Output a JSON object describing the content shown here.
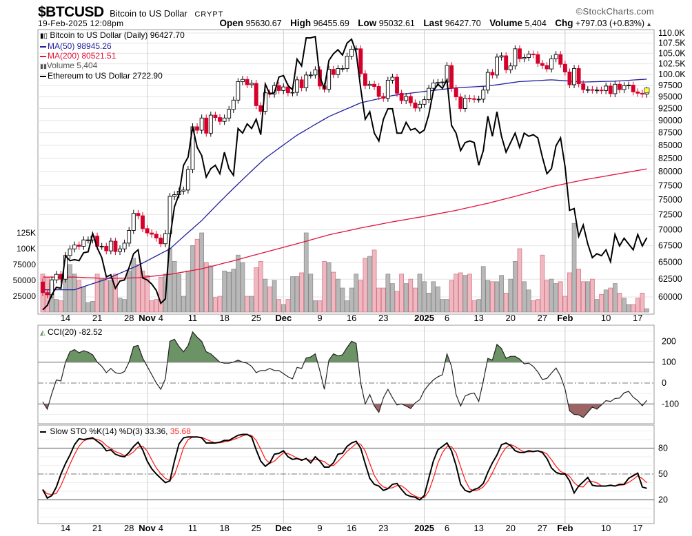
{
  "header": {
    "symbol": "$BTCUSD",
    "name": "Bitcoin to US Dollar",
    "exchange": "CRYPT",
    "datetime": "19-Feb-2025 12:08pm",
    "copyright": "©StockCharts.com",
    "open_label": "Open",
    "open": "95630.67",
    "high_label": "High",
    "high": "96455.69",
    "low_label": "Low",
    "low": "95032.61",
    "last_label": "Last",
    "last": "96427.70",
    "volume_label": "Volume",
    "volume": "5,404",
    "chg_label": "Chg",
    "chg": "+797.03 (+0.83%)",
    "chg_arrow": "▲"
  },
  "legend": {
    "price": "Bitcoin to US Dollar (Daily) 96427.70",
    "ma50": "MA(50) 98945.26",
    "ma200": "MA(200) 80521.51",
    "volume": "Volume 5,404",
    "eth": "Ethereum to US Dollar 2722.90",
    "cci": "CCI(20) -82.52",
    "sto": "Slow STO %K(14) %D(3) 33.36,",
    "sto_d": "35.68"
  },
  "colors": {
    "up_candle": "#000000",
    "down_candle": "#d6002b",
    "ma50": "#1f1f9e",
    "ma200": "#e0143c",
    "eth": "#000000",
    "volume_up": "#b8b8b8",
    "volume_down": "#f0b9c2",
    "cci_fill_high": "#6b9366",
    "cci_fill_low": "#9c6464",
    "sto_k": "#000000",
    "sto_d": "#ff2020"
  },
  "chart_data": [
    {
      "type": "candlestick",
      "title": "$BTCUSD Bitcoin to US Dollar",
      "xlim": [
        "2024-10-09",
        "2025-02-19"
      ],
      "price_scale": "log",
      "ylim": [
        58500,
        111000
      ],
      "price_ticks": [
        "110.0K",
        "107.5K",
        "105.0K",
        "102.5K",
        "100.0K",
        "97500",
        "95000",
        "92500",
        "90000",
        "87500",
        "85000",
        "82500",
        "80000",
        "77500",
        "75000",
        "72500",
        "70000",
        "67500",
        "65000",
        "62500",
        "60000"
      ],
      "price_tick_values": [
        110000,
        107500,
        105000,
        102500,
        100000,
        97500,
        95000,
        92500,
        90000,
        87500,
        85000,
        82500,
        80000,
        77500,
        75000,
        72500,
        70000,
        67500,
        65000,
        62500,
        60000
      ],
      "volume_ticks": [
        "125K",
        "100K",
        "75000",
        "50000",
        "25000"
      ],
      "volume_tick_values": [
        125000,
        100000,
        75000,
        50000,
        25000
      ],
      "x_ticks": [
        {
          "label": "14",
          "date": "2024-10-14",
          "bold": false
        },
        {
          "label": "21",
          "date": "2024-10-21",
          "bold": false
        },
        {
          "label": "28",
          "date": "2024-10-28",
          "bold": false
        },
        {
          "label": "Nov",
          "date": "2024-11-01",
          "bold": true
        },
        {
          "label": "4",
          "date": "2024-11-04",
          "bold": false
        },
        {
          "label": "11",
          "date": "2024-11-11",
          "bold": false
        },
        {
          "label": "18",
          "date": "2024-11-18",
          "bold": false
        },
        {
          "label": "25",
          "date": "2024-11-25",
          "bold": false
        },
        {
          "label": "Dec",
          "date": "2024-12-01",
          "bold": true
        },
        {
          "label": "9",
          "date": "2024-12-09",
          "bold": false
        },
        {
          "label": "16",
          "date": "2024-12-16",
          "bold": false
        },
        {
          "label": "23",
          "date": "2024-12-23",
          "bold": false
        },
        {
          "label": "2025",
          "date": "2025-01-01",
          "bold": true
        },
        {
          "label": "6",
          "date": "2025-01-06",
          "bold": false
        },
        {
          "label": "13",
          "date": "2025-01-13",
          "bold": false
        },
        {
          "label": "20",
          "date": "2025-01-20",
          "bold": false
        },
        {
          "label": "27",
          "date": "2025-01-27",
          "bold": false
        },
        {
          "label": "Feb",
          "date": "2025-02-01",
          "bold": true
        },
        {
          "label": "10",
          "date": "2025-02-10",
          "bold": false
        },
        {
          "label": "17",
          "date": "2025-02-17",
          "bold": false
        }
      ],
      "btc_first_open": 62100,
      "btc_close": [
        60600,
        60300,
        62400,
        63200,
        62500,
        66000,
        67000,
        67600,
        67400,
        68400,
        68400,
        69000,
        67400,
        67400,
        66700,
        68200,
        66600,
        67000,
        67900,
        69900,
        72700,
        72300,
        70200,
        69500,
        69300,
        68700,
        67800,
        69400,
        75600,
        75900,
        76500,
        76700,
        80400,
        88700,
        88000,
        90500,
        87400,
        91100,
        90600,
        89800,
        90500,
        92300,
        94300,
        98400,
        98900,
        97700,
        98000,
        93100,
        91900,
        95900,
        95600,
        97500,
        96400,
        97200,
        95900,
        96000,
        98800,
        97000,
        99900,
        99900,
        101100,
        97400,
        96700,
        101200,
        100000,
        101400,
        101400,
        104300,
        106000,
        106100,
        100200,
        97500,
        97800,
        97300,
        95100,
        94700,
        98700,
        99400,
        95800,
        94200,
        95100,
        93700,
        92600,
        93400,
        94400,
        96900,
        98100,
        98200,
        98300,
        102100,
        96900,
        95000,
        92500,
        94700,
        94600,
        94500,
        94500,
        96500,
        100500,
        99900,
        104100,
        104400,
        101100,
        102000,
        106100,
        103700,
        104000,
        104800,
        104700,
        102600,
        102100,
        101300,
        103700,
        104700,
        102400,
        100600,
        97700,
        101400,
        97900,
        96600,
        96600,
        96500,
        96500,
        96400,
        97400,
        95700,
        97800,
        96600,
        97500,
        97600,
        96100,
        95800,
        95600,
        96427.7
      ],
      "volume": [
        60000,
        55000,
        45000,
        20000,
        18000,
        70000,
        75000,
        60000,
        50000,
        40000,
        15000,
        17000,
        60000,
        52000,
        50000,
        50000,
        60000,
        22000,
        20000,
        65000,
        85000,
        75000,
        65000,
        58000,
        18000,
        20000,
        55000,
        60000,
        100000,
        80000,
        60000,
        25000,
        65000,
        105000,
        115000,
        125000,
        78000,
        73000,
        23000,
        25000,
        65000,
        63000,
        68000,
        90000,
        78000,
        25000,
        25000,
        70000,
        80000,
        52000,
        40000,
        50000,
        20000,
        12000,
        20000,
        56000,
        56000,
        62000,
        125000,
        60000,
        18000,
        18000,
        80000,
        78000,
        63000,
        52000,
        38000,
        18000,
        38000,
        60000,
        50000,
        85000,
        88000,
        98000,
        38000,
        38000,
        60000,
        45000,
        33000,
        60000,
        45000,
        52000,
        38000,
        60000,
        48000,
        30000,
        48000,
        40000,
        20000,
        20000,
        50000,
        60000,
        62000,
        58000,
        60000,
        18000,
        20000,
        72000,
        50000,
        48000,
        48000,
        58000,
        30000,
        52000,
        80000,
        100000,
        48000,
        35000,
        18000,
        20000,
        90000,
        50000,
        52000,
        45000,
        48000,
        25000,
        62000,
        140000,
        68000,
        48000,
        48000,
        52000,
        20000,
        28000,
        35000,
        38000,
        45000,
        30000,
        22000,
        12000,
        12000,
        22000,
        30000,
        5404
      ],
      "eth_close": [
        2370,
        2390,
        2440,
        2475,
        2470,
        2630,
        2605,
        2610,
        2605,
        2645,
        2650,
        2745,
        2670,
        2620,
        2525,
        2535,
        2470,
        2505,
        2510,
        2570,
        2640,
        2660,
        2520,
        2510,
        2490,
        2460,
        2400,
        2420,
        2720,
        2890,
        2960,
        3130,
        3180,
        3370,
        3240,
        3190,
        3060,
        3110,
        3130,
        3080,
        3210,
        3110,
        3070,
        3360,
        3330,
        3390,
        3360,
        3420,
        3320,
        3660,
        3590,
        3600,
        3710,
        3720,
        3650,
        3620,
        3840,
        3790,
        4000,
        4000,
        4010,
        3710,
        3630,
        3830,
        3880,
        3910,
        3870,
        3960,
        3990,
        3890,
        3630,
        3420,
        3470,
        3330,
        3280,
        3420,
        3490,
        3490,
        3330,
        3330,
        3400,
        3350,
        3360,
        3330,
        3350,
        3450,
        3610,
        3660,
        3630,
        3690,
        3380,
        3330,
        3220,
        3270,
        3280,
        3270,
        3130,
        3220,
        3440,
        3310,
        3470,
        3310,
        3210,
        3270,
        3330,
        3240,
        3330,
        3310,
        3320,
        3300,
        3180,
        3080,
        3110,
        3250,
        3300,
        3120,
        2870,
        2880,
        2730,
        2790,
        2690,
        2620,
        2640,
        2630,
        2660,
        2600,
        2740,
        2680,
        2720,
        2690,
        2660,
        2740,
        2680,
        2722.9
      ],
      "ma50_weekly": [
        61000,
        61000,
        62500,
        64500,
        67000,
        71500,
        77000,
        82500,
        87000,
        90800,
        93700,
        95300,
        96200,
        97000,
        97400,
        98400,
        98800,
        98300,
        98500,
        98945.26
      ],
      "ma200_weekly": [
        62800,
        62800,
        62600,
        62700,
        63200,
        64000,
        65200,
        66500,
        67800,
        69200,
        70300,
        71300,
        72200,
        73200,
        74400,
        75800,
        77300,
        78500,
        79500,
        80521.51
      ],
      "series_names": [
        "Bitcoin to US Dollar (Daily)",
        "MA(50)",
        "MA(200)",
        "Volume",
        "Ethereum to US Dollar"
      ]
    },
    {
      "type": "line",
      "title": "CCI(20)",
      "ylim": [
        -220,
        270
      ],
      "y_ticks": [
        "200",
        "100",
        "0",
        "-100"
      ],
      "y_tick_values": [
        200,
        100,
        0,
        -100
      ],
      "values": [
        -90,
        -125,
        -50,
        15,
        10,
        100,
        150,
        160,
        145,
        155,
        148,
        135,
        100,
        80,
        50,
        70,
        50,
        45,
        55,
        100,
        175,
        180,
        120,
        80,
        40,
        0,
        -30,
        20,
        200,
        210,
        175,
        150,
        180,
        245,
        220,
        200,
        150,
        140,
        120,
        100,
        95,
        95,
        100,
        110,
        100,
        95,
        80,
        50,
        60,
        60,
        70,
        60,
        60,
        45,
        30,
        20,
        75,
        70,
        120,
        125,
        140,
        60,
        -30,
        110,
        140,
        130,
        135,
        170,
        200,
        190,
        0,
        -100,
        -55,
        -110,
        -140,
        -70,
        -30,
        -70,
        -105,
        -100,
        -110,
        -122,
        -95,
        -80,
        -35,
        -8,
        15,
        30,
        40,
        140,
        80,
        -55,
        -110,
        -62,
        -52,
        -48,
        -88,
        10,
        118,
        110,
        185,
        165,
        118,
        128,
        128,
        115,
        92,
        95,
        80,
        53,
        17,
        22,
        48,
        72,
        33,
        -30,
        -133,
        -150,
        -152,
        -165,
        -140,
        -115,
        -125,
        -105,
        -84,
        -88,
        -74,
        -72,
        -47,
        -40,
        -68,
        -84,
        -109,
        -82.52
      ]
    },
    {
      "type": "line",
      "title": "Slow STO %K(14) %D(3)",
      "ylim": [
        0,
        100
      ],
      "y_ticks": [
        "80",
        "50",
        "20"
      ],
      "y_tick_values": [
        80,
        50,
        20
      ],
      "k_values": [
        32,
        22,
        25,
        35,
        50,
        62,
        72,
        84,
        91,
        90,
        91,
        92,
        88,
        84,
        77,
        78,
        73,
        71,
        70,
        75,
        82,
        87,
        78,
        65,
        56,
        50,
        45,
        40,
        42,
        65,
        85,
        92,
        93,
        93,
        93,
        92,
        86,
        86,
        86,
        87,
        89,
        89,
        92,
        95,
        96,
        96,
        93,
        78,
        65,
        59,
        63,
        73,
        74,
        77,
        70,
        67,
        68,
        66,
        68,
        63,
        70,
        65,
        58,
        58,
        63,
        73,
        74,
        82,
        86,
        88,
        80,
        62,
        45,
        38,
        36,
        31,
        33,
        38,
        39,
        32,
        26,
        24,
        23,
        20,
        25,
        45,
        65,
        78,
        82,
        86,
        77,
        60,
        38,
        31,
        29,
        32,
        34,
        39,
        52,
        63,
        72,
        84,
        86,
        83,
        77,
        75,
        75,
        77,
        76,
        77,
        75,
        68,
        57,
        52,
        50,
        50,
        42,
        28,
        36,
        41,
        46,
        37,
        36,
        36,
        36,
        37,
        36,
        38,
        38,
        45,
        48,
        51,
        35,
        33.36
      ],
      "series_names": [
        "%K",
        "%D"
      ]
    }
  ]
}
